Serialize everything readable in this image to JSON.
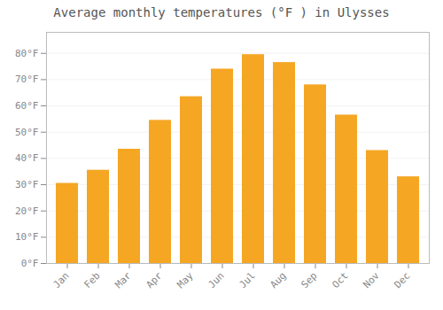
{
  "chart_data": {
    "type": "bar",
    "title": "Average monthly temperatures (°F ) in Ulysses",
    "categories": [
      "Jan",
      "Feb",
      "Mar",
      "Apr",
      "May",
      "Jun",
      "Jul",
      "Aug",
      "Sep",
      "Oct",
      "Nov",
      "Dec"
    ],
    "values": [
      30.5,
      35.5,
      43.5,
      54.5,
      63.5,
      74,
      79.5,
      76.5,
      68,
      56.5,
      43,
      33
    ],
    "color": "#F5A623",
    "ylim": [
      0,
      88
    ],
    "yticks": [
      {
        "value": 0,
        "label": "0°F"
      },
      {
        "value": 10,
        "label": "10°F"
      },
      {
        "value": 20,
        "label": "20°F"
      },
      {
        "value": 30,
        "label": "30°F"
      },
      {
        "value": 40,
        "label": "40°F"
      },
      {
        "value": 50,
        "label": "50°F"
      },
      {
        "value": 60,
        "label": "60°F"
      },
      {
        "value": 70,
        "label": "70°F"
      },
      {
        "value": 80,
        "label": "80°F"
      }
    ],
    "grid": true
  }
}
